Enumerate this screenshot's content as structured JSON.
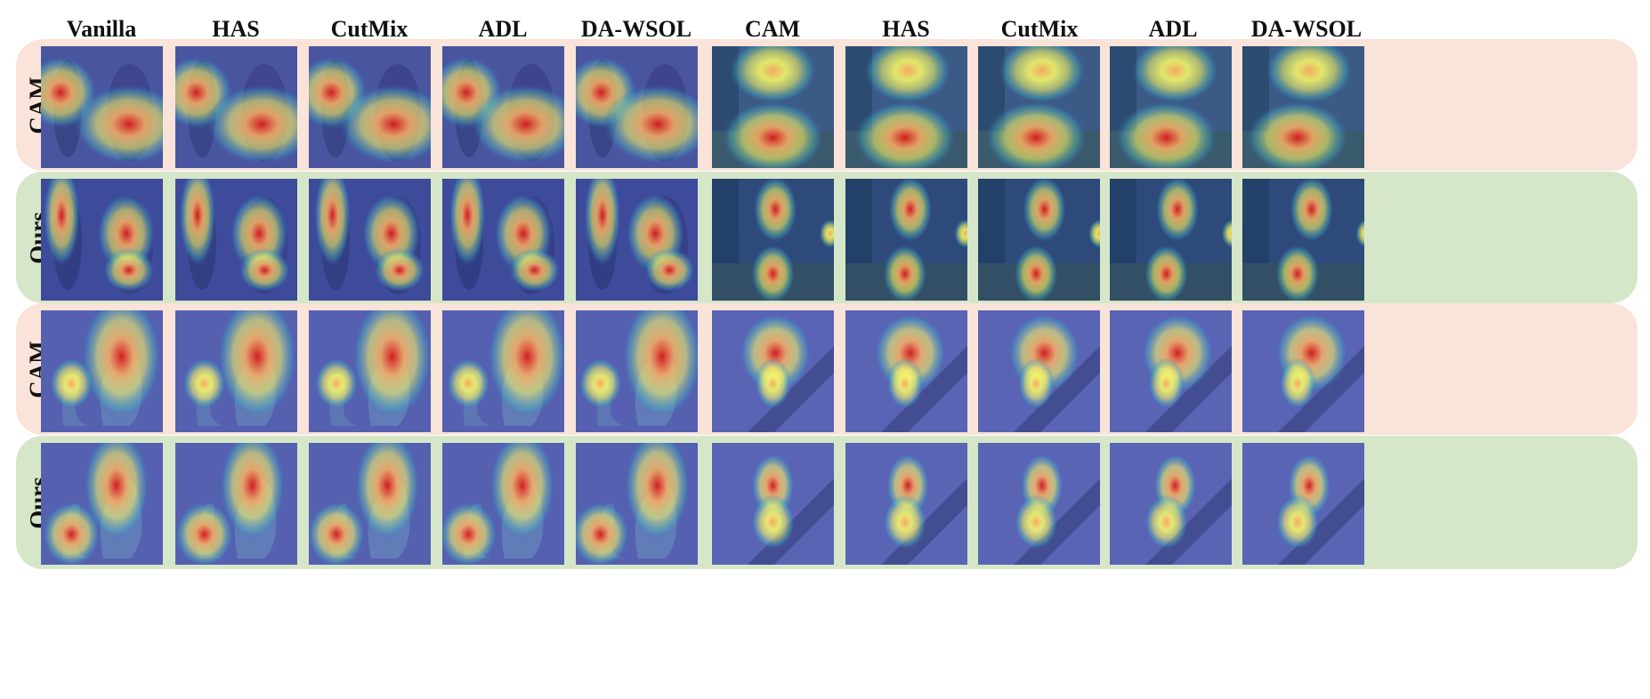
{
  "column_headers": [
    "Vanilla",
    "HAS",
    "CutMix",
    "ADL",
    "DA-WSOL",
    "CAM",
    "HAS",
    "CutMix",
    "ADL",
    "DA-WSOL"
  ],
  "row_labels": [
    "CAM",
    "Ours",
    "CAM",
    "Ours"
  ],
  "colors": {
    "cam_band": "#fae3d8",
    "ours_band": "#d6e7c9",
    "heat_hot": "#d7191c",
    "heat_mid": "#fdae61",
    "heat_warm": "#ffff66",
    "heat_cool": "#41b6c4",
    "heat_base": "#3f4fa8"
  },
  "icons": [
    "dog-statue-scene",
    "tree-path-scene",
    "cat-statue-scene",
    "bird-branch-scene"
  ]
}
